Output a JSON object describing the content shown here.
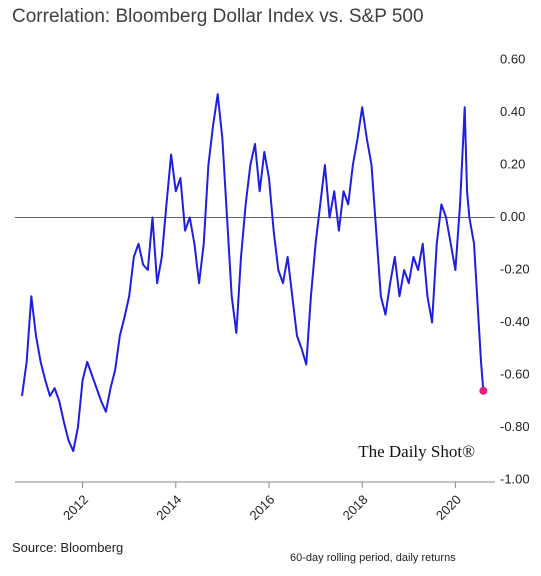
{
  "chart_data": {
    "type": "line",
    "title": "Correlation: Bloomberg Dollar Index vs. S&P 500",
    "watermark": "The Daily Shot®",
    "source": "Source: Bloomberg",
    "note": "60-day rolling period,   daily returns",
    "x": [
      2010.7,
      2010.8,
      2010.9,
      2011.0,
      2011.1,
      2011.2,
      2011.3,
      2011.4,
      2011.5,
      2011.6,
      2011.7,
      2011.8,
      2011.9,
      2012.0,
      2012.1,
      2012.2,
      2012.3,
      2012.4,
      2012.5,
      2012.6,
      2012.7,
      2012.8,
      2012.9,
      2013.0,
      2013.1,
      2013.2,
      2013.3,
      2013.4,
      2013.5,
      2013.6,
      2013.7,
      2013.8,
      2013.9,
      2014.0,
      2014.1,
      2014.2,
      2014.3,
      2014.4,
      2014.5,
      2014.6,
      2014.7,
      2014.8,
      2014.9,
      2015.0,
      2015.1,
      2015.2,
      2015.3,
      2015.4,
      2015.5,
      2015.6,
      2015.7,
      2015.8,
      2015.9,
      2016.0,
      2016.1,
      2016.2,
      2016.3,
      2016.4,
      2016.5,
      2016.6,
      2016.7,
      2016.8,
      2016.9,
      2017.0,
      2017.1,
      2017.2,
      2017.3,
      2017.4,
      2017.5,
      2017.6,
      2017.7,
      2017.8,
      2017.9,
      2018.0,
      2018.1,
      2018.2,
      2018.3,
      2018.4,
      2018.5,
      2018.6,
      2018.7,
      2018.8,
      2018.9,
      2019.0,
      2019.1,
      2019.2,
      2019.3,
      2019.4,
      2019.5,
      2019.6,
      2019.7,
      2019.8,
      2019.9,
      2020.0,
      2020.1,
      2020.2,
      2020.25,
      2020.3,
      2020.4,
      2020.45,
      2020.5,
      2020.55,
      2020.6
    ],
    "series": [
      {
        "name": "Correlation",
        "color": "#1f1fe0",
        "values": [
          -0.68,
          -0.55,
          -0.3,
          -0.45,
          -0.55,
          -0.62,
          -0.68,
          -0.65,
          -0.7,
          -0.78,
          -0.85,
          -0.89,
          -0.8,
          -0.62,
          -0.55,
          -0.6,
          -0.65,
          -0.7,
          -0.74,
          -0.65,
          -0.58,
          -0.45,
          -0.38,
          -0.3,
          -0.15,
          -0.1,
          -0.18,
          -0.2,
          0.0,
          -0.25,
          -0.15,
          0.05,
          0.24,
          0.1,
          0.15,
          -0.05,
          0.0,
          -0.1,
          -0.25,
          -0.1,
          0.2,
          0.35,
          0.47,
          0.3,
          0.0,
          -0.3,
          -0.44,
          -0.15,
          0.05,
          0.2,
          0.28,
          0.1,
          0.25,
          0.15,
          -0.05,
          -0.2,
          -0.25,
          -0.15,
          -0.3,
          -0.45,
          -0.5,
          -0.56,
          -0.3,
          -0.1,
          0.05,
          0.2,
          0.0,
          0.1,
          -0.05,
          0.1,
          0.05,
          0.2,
          0.3,
          0.42,
          0.3,
          0.2,
          -0.05,
          -0.3,
          -0.37,
          -0.25,
          -0.15,
          -0.3,
          -0.2,
          -0.25,
          -0.15,
          -0.2,
          -0.1,
          -0.3,
          -0.4,
          -0.1,
          0.05,
          0.0,
          -0.1,
          -0.2,
          0.05,
          0.42,
          0.1,
          0.0,
          -0.1,
          -0.25,
          -0.4,
          -0.55,
          -0.66
        ]
      }
    ],
    "marker_color": "#e0207a",
    "xlim": [
      2010.55,
      2020.85
    ],
    "xticks": [
      2012,
      2014,
      2016,
      2018,
      2020
    ],
    "ylim": [
      -1.0,
      0.6
    ],
    "yticks": [
      {
        "value": 0.6,
        "label": "0.60"
      },
      {
        "value": 0.4,
        "label": "0.40"
      },
      {
        "value": 0.2,
        "label": "0.20"
      },
      {
        "value": 0,
        "label": "0.00"
      },
      {
        "value": -0.2,
        "label": "-0.20"
      },
      {
        "value": -0.4,
        "label": "-0.40"
      },
      {
        "value": -0.6,
        "label": "-0.60"
      },
      {
        "value": -0.8,
        "label": "-0.80"
      },
      {
        "value": -1.0,
        "label": "-1.00"
      }
    ],
    "grid": false
  }
}
